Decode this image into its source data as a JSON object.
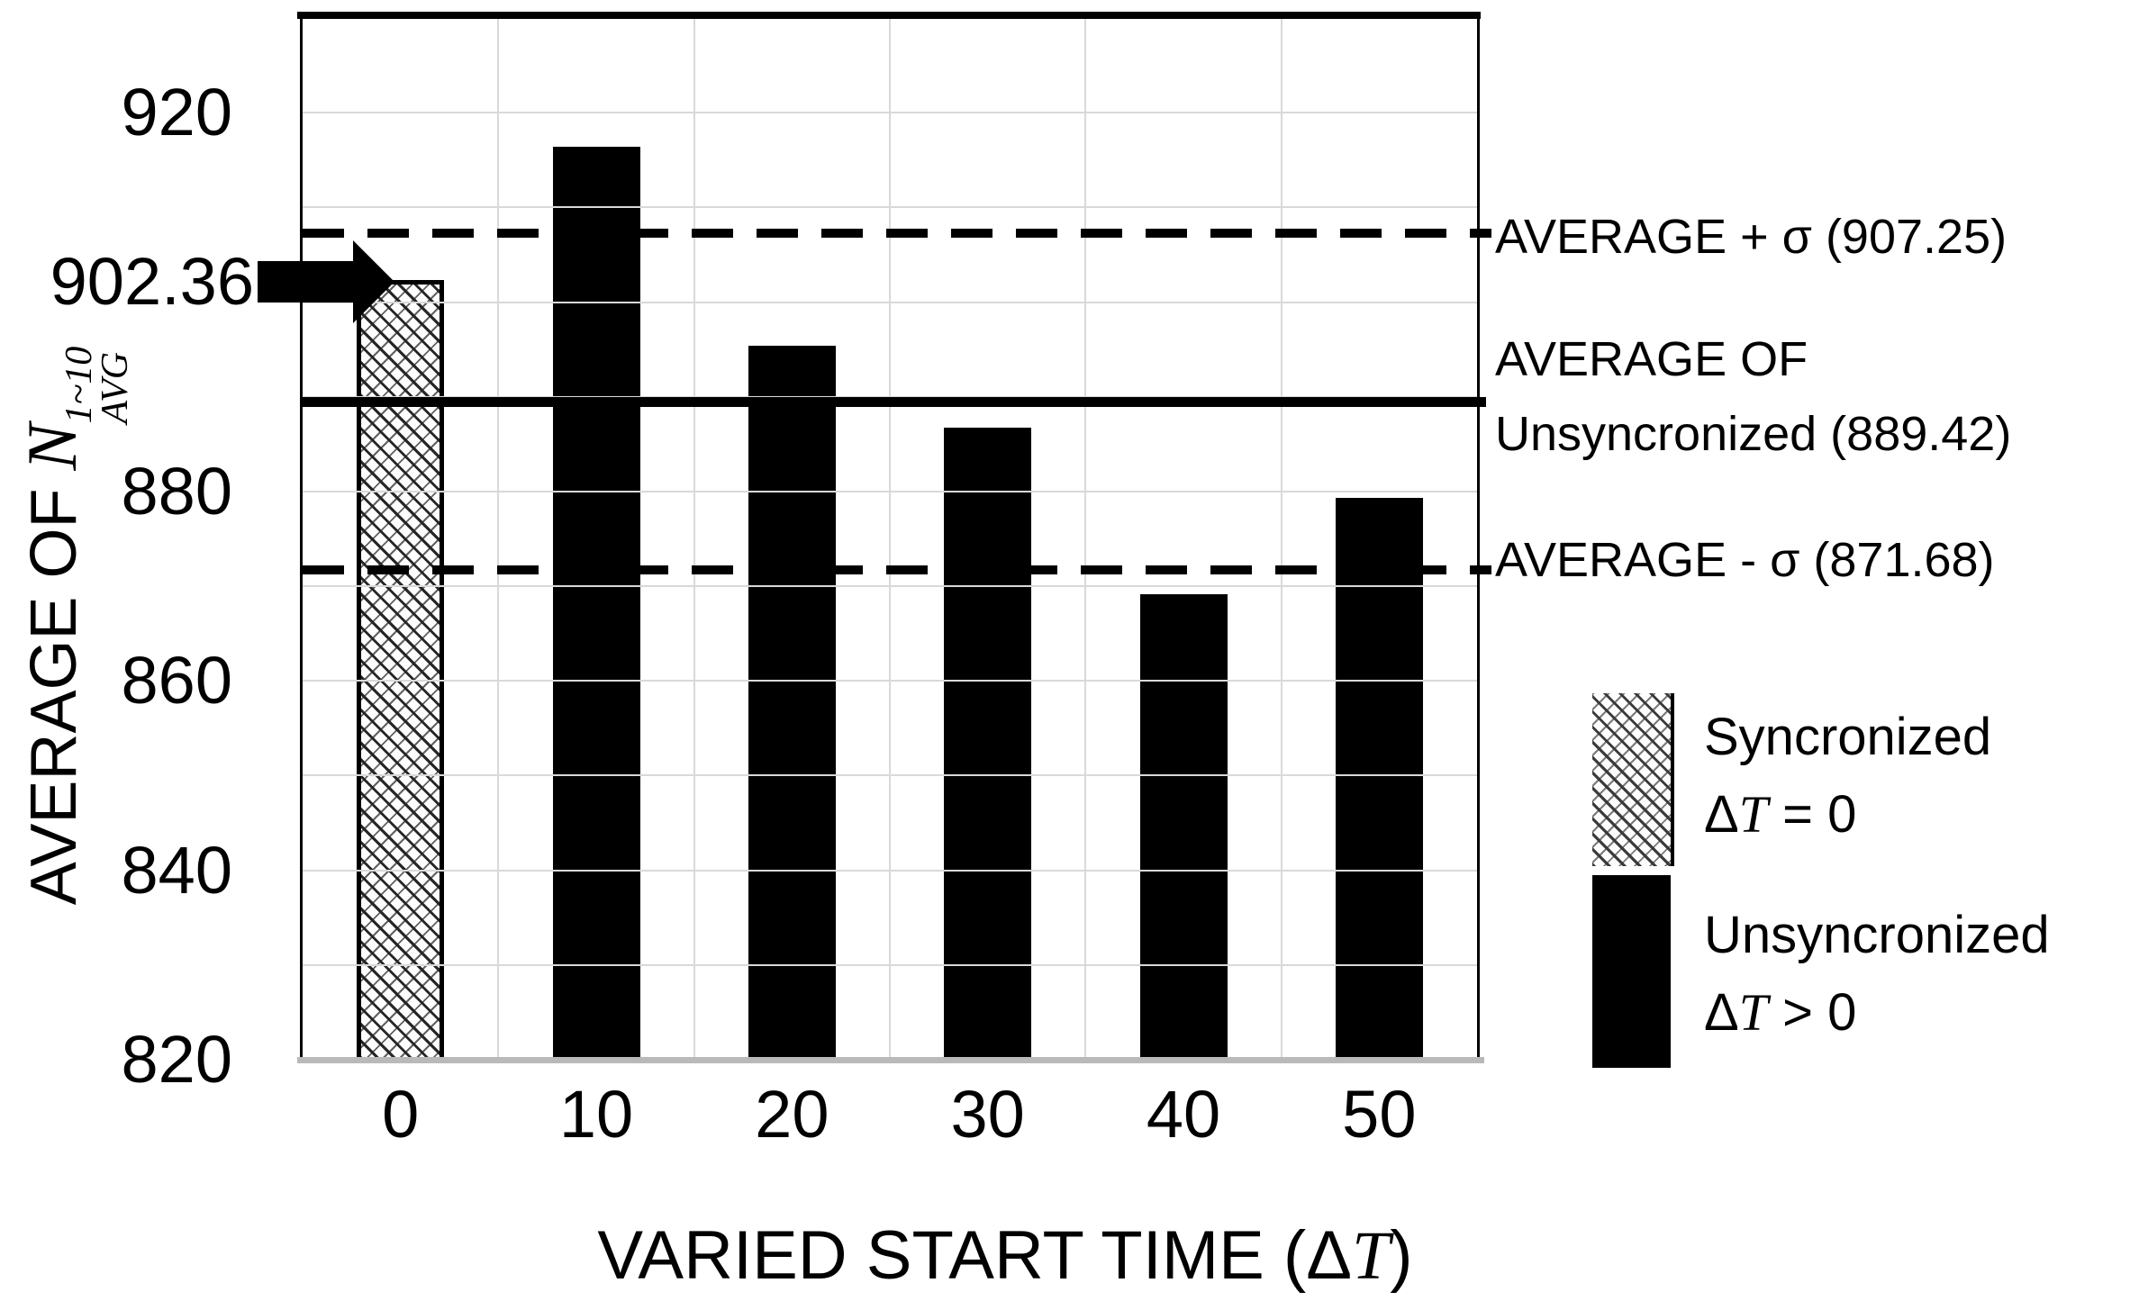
{
  "chart_data": {
    "type": "bar",
    "title": "",
    "xlabel": "VARIED START TIME (ΔT)",
    "ylabel": "AVERAGE OF N_AVG^1~10",
    "categories": [
      "0",
      "10",
      "20",
      "30",
      "40",
      "50"
    ],
    "series": [
      {
        "name": "Syncronized ΔT = 0",
        "style": "hatched",
        "values": [
          902.36,
          null,
          null,
          null,
          null,
          null
        ]
      },
      {
        "name": "Unsyncronized ΔT > 0",
        "style": "black",
        "values": [
          null,
          916.4,
          895.4,
          886.7,
          869.2,
          879.3
        ]
      }
    ],
    "ylim": [
      820,
      930
    ],
    "gridline_values": [
      920,
      910,
      900,
      890,
      880,
      870,
      860,
      850,
      840,
      830
    ],
    "ytick_values": [
      920,
      880,
      860,
      840,
      820
    ],
    "grid": true,
    "legend_position": "right",
    "reference_lines": [
      {
        "label": "AVERAGE + σ (907.25)",
        "value": 907.25,
        "style": "dashed"
      },
      {
        "label": "AVERAGE OF Unsyncronized (889.42)",
        "value": 889.42,
        "style": "solid"
      },
      {
        "label": "AVERAGE - σ (871.68)",
        "value": 871.68,
        "style": "dashed"
      }
    ],
    "annotation_arrow": {
      "label": "902.36",
      "value": 902.36,
      "points_to_category": "0"
    }
  },
  "y_axis": {
    "tick_labels": [
      "920",
      "880",
      "860",
      "840",
      "820"
    ],
    "arrow_label": "902.36",
    "title_prefix": "AVERAGE OF ",
    "math_base": "N",
    "math_sup": "1~10",
    "math_sub": "AVG"
  },
  "x_axis": {
    "tick_labels": [
      "0",
      "10",
      "20",
      "30",
      "40",
      "50"
    ],
    "title_prefix": "VARIED START TIME (",
    "delta": "Δ",
    "t": "T",
    "title_suffix": ")"
  },
  "annotations": {
    "sigma_plus": "AVERAGE + σ (907.25)",
    "avg_line1": "AVERAGE OF",
    "avg_line2": "Unsyncronized (889.42)",
    "sigma_minus": "AVERAGE - σ (871.68)"
  },
  "legend": {
    "sync_name": "Syncronized",
    "sync_delta": "Δ",
    "sync_t": "T",
    "sync_cond": " = 0",
    "unsync_name": "Unsyncronized",
    "unsync_delta": "Δ",
    "unsync_t": "T",
    "unsync_cond": " > 0"
  },
  "colors": {
    "bar_black": "#000000",
    "gridline": "#d9d9d9",
    "bottom_axis": "#b9b9b9",
    "text": "#000000"
  }
}
